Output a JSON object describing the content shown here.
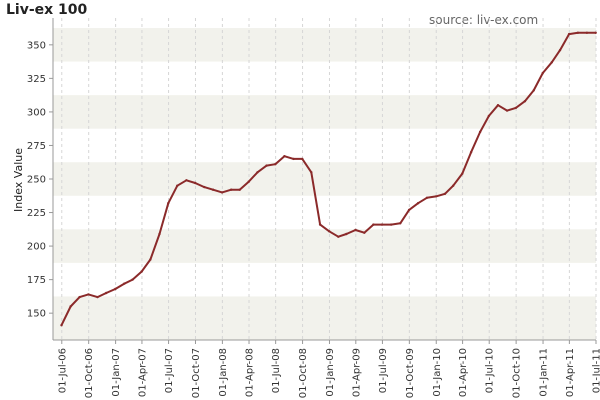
{
  "header": {
    "title": "Liv-ex 100",
    "source": "source: liv-ex.com"
  },
  "colors": {
    "series": "#8b2a2a",
    "band": "#f2f2ec",
    "axis": "#999999",
    "grid": "#d6d6d6"
  },
  "chart_data": {
    "type": "line",
    "title": "Liv-ex 100",
    "xlabel": "",
    "ylabel": "Index Value",
    "ylim": [
      130,
      370
    ],
    "xlim": [
      "2006-06-01",
      "2011-07-01"
    ],
    "y_ticks": [
      150,
      175,
      200,
      225,
      250,
      275,
      300,
      325,
      350
    ],
    "x_ticks": [
      "01-Jul-06",
      "01-Oct-06",
      "01-Jan-07",
      "01-Apr-07",
      "01-Jul-07",
      "01-Oct-07",
      "01-Jan-08",
      "01-Apr-08",
      "01-Jul-08",
      "01-Oct-08",
      "01-Jan-09",
      "01-Apr-09",
      "01-Jul-09",
      "01-Oct-09",
      "01-Jan-10",
      "01-Apr-10",
      "01-Jul-10",
      "01-Oct-10",
      "01-Jan-11",
      "01-Apr-11",
      "01-Jul-11"
    ],
    "grid": true,
    "series": [
      {
        "x": [
          "2006-06-30",
          "2006-07-31",
          "2006-08-31",
          "2006-09-30",
          "2006-10-31",
          "2006-11-30",
          "2006-12-31",
          "2007-01-31",
          "2007-02-28",
          "2007-03-31",
          "2007-04-30",
          "2007-05-31",
          "2007-06-30",
          "2007-07-31",
          "2007-08-31",
          "2007-09-30",
          "2007-10-31",
          "2007-11-30",
          "2007-12-31",
          "2008-01-31",
          "2008-02-29",
          "2008-03-31",
          "2008-04-30",
          "2008-05-31",
          "2008-06-30",
          "2008-07-31",
          "2008-08-31",
          "2008-09-30",
          "2008-10-31",
          "2008-11-30",
          "2008-12-31",
          "2009-01-31",
          "2009-02-28",
          "2009-03-31",
          "2009-04-30",
          "2009-05-31",
          "2009-06-30",
          "2009-07-31",
          "2009-08-31",
          "2009-09-30",
          "2009-10-31",
          "2009-11-30",
          "2009-12-31",
          "2010-01-31",
          "2010-02-28",
          "2010-03-31",
          "2010-04-30",
          "2010-05-31",
          "2010-06-30",
          "2010-07-31",
          "2010-08-31",
          "2010-09-30",
          "2010-10-31",
          "2010-11-30",
          "2010-12-31",
          "2011-01-31",
          "2011-02-28",
          "2011-03-31",
          "2011-04-30",
          "2011-05-31",
          "2011-06-30"
        ],
        "values": [
          141,
          155,
          162,
          164,
          162,
          165,
          168,
          172,
          175,
          181,
          190,
          209,
          232,
          245,
          249,
          247,
          244,
          242,
          240,
          242,
          242,
          248,
          255,
          260,
          261,
          267,
          265,
          265,
          255,
          216,
          211,
          207,
          209,
          212,
          210,
          216,
          216,
          216,
          217,
          227,
          232,
          236,
          237,
          239,
          245,
          254,
          270,
          285,
          297,
          305,
          301,
          303,
          308,
          316,
          329,
          337,
          346,
          358,
          359,
          359,
          359
        ]
      }
    ]
  }
}
